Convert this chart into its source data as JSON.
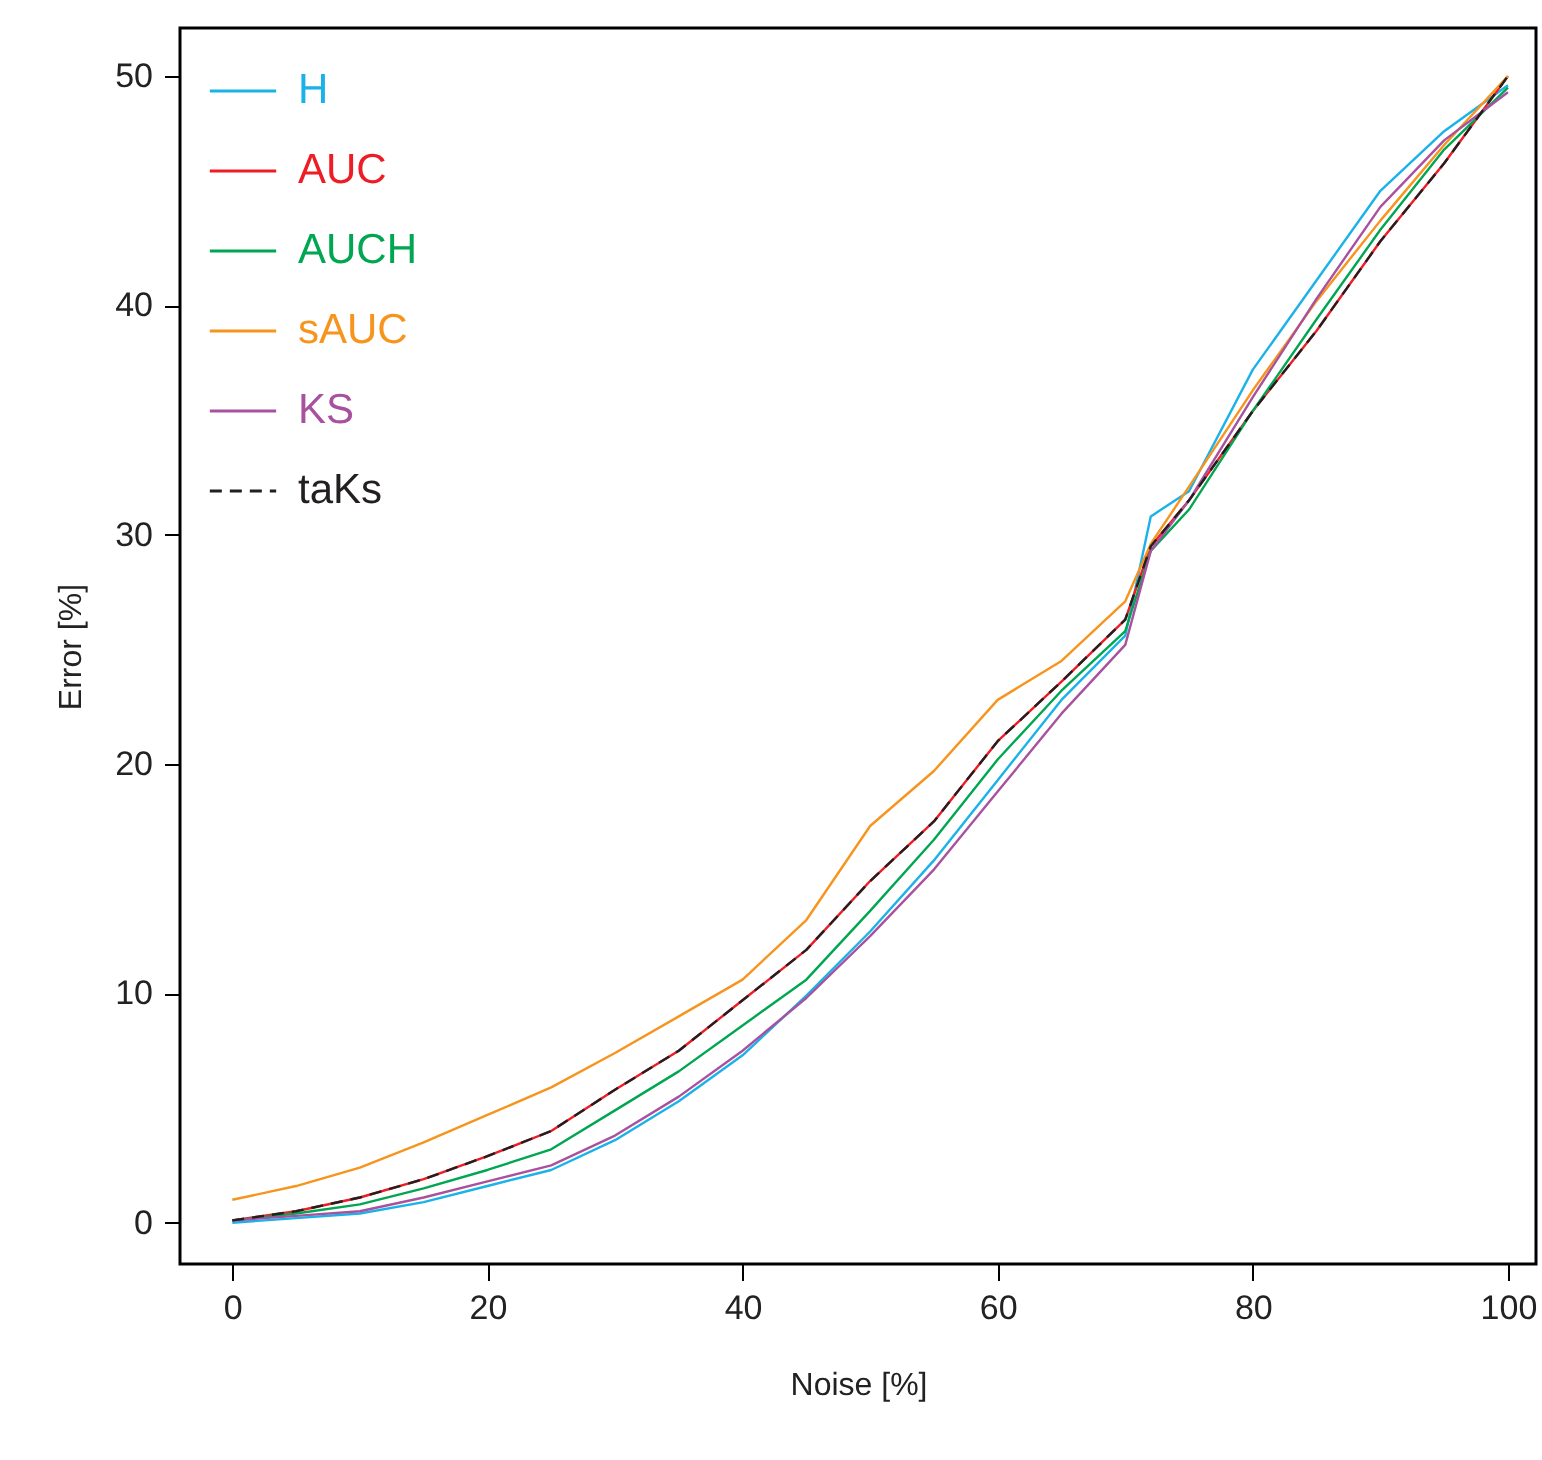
{
  "chart_data": {
    "type": "line",
    "xlabel": "Noise [%]",
    "ylabel": "Error [%]",
    "x": [
      0,
      5,
      10,
      15,
      20,
      25,
      30,
      35,
      40,
      45,
      50,
      55,
      60,
      65,
      70,
      72,
      75,
      80,
      85,
      90,
      95,
      100
    ],
    "xlim": [
      -4.1,
      102.2
    ],
    "ylim": [
      -1.8,
      52.1
    ],
    "xticks": [
      0,
      20,
      40,
      60,
      80,
      100
    ],
    "yticks": [
      0,
      10,
      20,
      30,
      40,
      50
    ],
    "grid": false,
    "legend": "top left",
    "marker": "none",
    "series": [
      {
        "name": "H",
        "color": "#1ab2e8",
        "values": [
          0.0,
          0.2,
          0.4,
          0.9,
          1.6,
          2.3,
          3.6,
          5.3,
          7.3,
          9.9,
          12.7,
          15.8,
          19.3,
          22.8,
          25.6,
          30.8,
          31.9,
          37.2,
          41.1,
          45.0,
          47.6,
          49.6
        ]
      },
      {
        "name": "AUC",
        "color": "#ee1c25",
        "values": [
          0.1,
          0.5,
          1.1,
          1.9,
          2.9,
          4.0,
          5.8,
          7.5,
          9.7,
          11.9,
          14.9,
          17.5,
          21.0,
          23.6,
          26.3,
          29.5,
          31.5,
          35.4,
          38.9,
          42.8,
          46.2,
          50.0
        ]
      },
      {
        "name": "AUCH",
        "color": "#00a651",
        "values": [
          0.1,
          0.4,
          0.8,
          1.5,
          2.3,
          3.2,
          4.9,
          6.6,
          8.6,
          10.6,
          13.6,
          16.7,
          20.2,
          23.2,
          25.8,
          29.3,
          31.1,
          35.4,
          39.4,
          43.3,
          46.8,
          49.5
        ]
      },
      {
        "name": "sAUC",
        "color": "#f7941d",
        "values": [
          1.0,
          1.6,
          2.4,
          3.5,
          4.7,
          5.9,
          7.4,
          9.0,
          10.6,
          13.2,
          17.3,
          19.7,
          22.8,
          24.5,
          27.1,
          29.6,
          32.1,
          36.3,
          40.2,
          43.7,
          47.0,
          50.0
        ]
      },
      {
        "name": "KS",
        "color": "#a8519f",
        "values": [
          0.1,
          0.3,
          0.5,
          1.1,
          1.8,
          2.5,
          3.8,
          5.5,
          7.5,
          9.8,
          12.5,
          15.4,
          18.8,
          22.2,
          25.2,
          29.3,
          31.5,
          36.0,
          40.3,
          44.3,
          47.2,
          49.3
        ]
      },
      {
        "name": "taKs",
        "color": "#231f20",
        "line_style": "dashed",
        "values": [
          0.1,
          0.5,
          1.1,
          1.9,
          2.9,
          4.0,
          5.8,
          7.5,
          9.7,
          11.9,
          14.9,
          17.5,
          21.0,
          23.6,
          26.3,
          29.5,
          31.5,
          35.4,
          38.9,
          42.8,
          46.2,
          50.0
        ]
      }
    ]
  }
}
